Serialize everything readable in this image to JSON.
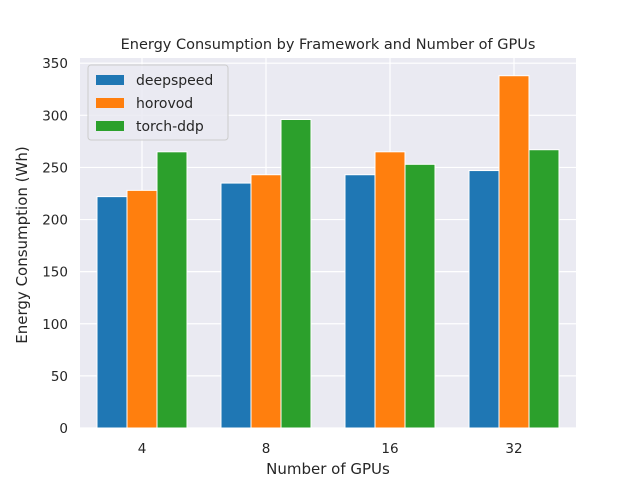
{
  "chart_data": {
    "type": "bar",
    "title": "Energy Consumption by Framework and Number of GPUs",
    "xlabel": "Number of GPUs",
    "ylabel": "Energy Consumption (Wh)",
    "categories": [
      "4",
      "8",
      "16",
      "32"
    ],
    "series": [
      {
        "name": "deepspeed",
        "color": "#1f77b4",
        "values": [
          222,
          235,
          243,
          247
        ]
      },
      {
        "name": "horovod",
        "color": "#ff7f0e",
        "values": [
          228,
          243,
          265,
          338
        ]
      },
      {
        "name": "torch-ddp",
        "color": "#2ca02c",
        "values": [
          265,
          296,
          253,
          267
        ]
      }
    ],
    "ylim": [
      0,
      355
    ],
    "yticks": [
      0,
      50,
      100,
      150,
      200,
      250,
      300,
      350
    ],
    "grid": true,
    "legend": "top-left",
    "background": "#eaeaf2"
  }
}
